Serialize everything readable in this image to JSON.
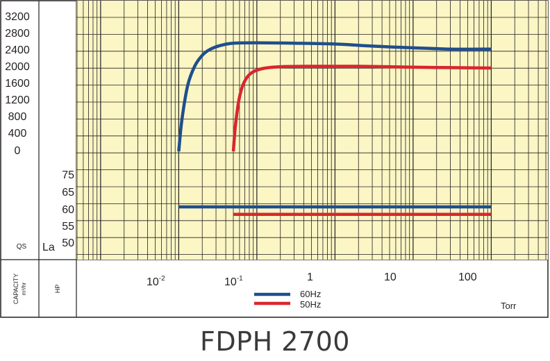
{
  "model": "FDPH 2700",
  "left_axis": {
    "capacity_label": "QS",
    "capacity_rotated_label": "CAPACITY",
    "capacity_unit": "m³/hr",
    "capacity_ticks": [
      "3200",
      "2800",
      "2400",
      "2000",
      "1600",
      "1200",
      "800",
      "400",
      "0"
    ],
    "hp_label": "La",
    "hp_rotated_label": "HP",
    "hp_ticks": [
      "75",
      "65",
      "60",
      "55",
      "50"
    ]
  },
  "x_axis": {
    "unit_label": "Torr",
    "ticks": [
      {
        "base": "10",
        "exp": "-2"
      },
      {
        "base": "10",
        "exp": "-1"
      },
      {
        "base": "1",
        "exp": ""
      },
      {
        "base": "10",
        "exp": ""
      },
      {
        "base": "100",
        "exp": ""
      }
    ]
  },
  "legend": [
    {
      "name": "60Hz",
      "color": "#1f4e8c"
    },
    {
      "name": "50Hz",
      "color": "#d9262e"
    }
  ],
  "colors": {
    "grid_background": "#fbf6c4",
    "grid_line": "#231f20",
    "series_60hz": "#1f4e8c",
    "series_50hz": "#d9262e"
  },
  "chart_data": {
    "type": "line",
    "title": "FDPH 2700",
    "xlabel": "Torr",
    "x_scale": "log",
    "xlim": [
      0.005,
      1000
    ],
    "capacity_panel": {
      "ylabel": "QS",
      "unit": "m³/hr",
      "ylim": [
        0,
        3200
      ],
      "series": [
        {
          "name": "60Hz",
          "x": [
            0.1,
            0.11,
            0.13,
            0.16,
            0.2,
            0.25,
            0.35,
            0.5,
            1,
            3,
            10,
            30,
            100,
            300,
            1000
          ],
          "y": [
            0,
            760,
            1560,
            2020,
            2280,
            2420,
            2520,
            2570,
            2580,
            2570,
            2550,
            2500,
            2460,
            2430,
            2430
          ]
        },
        {
          "name": "50Hz",
          "x": [
            0.5,
            0.53,
            0.58,
            0.65,
            0.75,
            0.9,
            1.2,
            2,
            5,
            20,
            100,
            300,
            1000
          ],
          "y": [
            0,
            580,
            1150,
            1530,
            1760,
            1890,
            1970,
            2010,
            2020,
            2020,
            2000,
            1990,
            1980
          ]
        }
      ]
    },
    "power_panel": {
      "ylabel": "La",
      "unit": "HP",
      "y_ticks": [
        75,
        65,
        60,
        55,
        50
      ],
      "series": [
        {
          "name": "60Hz",
          "x": [
            0.1,
            1000
          ],
          "y": [
            60,
            60
          ]
        },
        {
          "name": "50Hz",
          "x": [
            0.5,
            1000
          ],
          "y": [
            57,
            57
          ]
        }
      ]
    },
    "grid": true,
    "legend_position": "bottom-center"
  }
}
